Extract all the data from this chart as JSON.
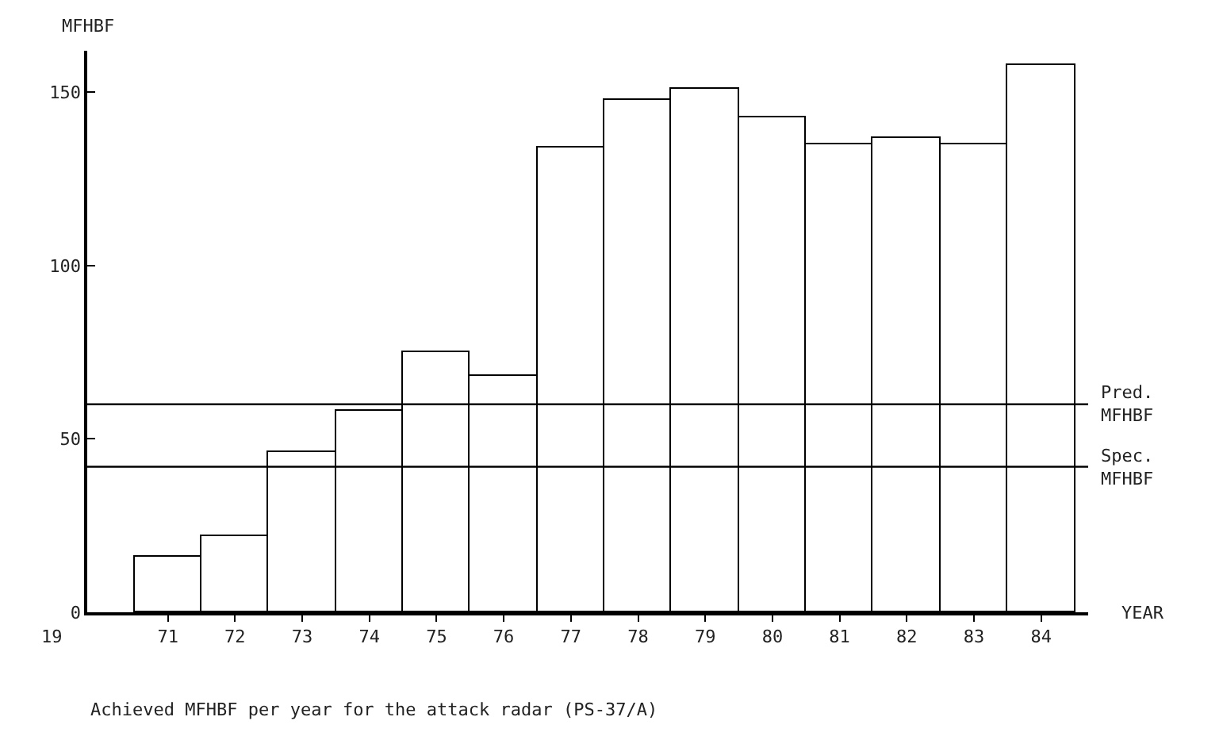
{
  "chart_data": {
    "type": "bar",
    "xlabel": "YEAR",
    "ylabel": "MFHBF",
    "categories": [
      "71",
      "72",
      "73",
      "74",
      "75",
      "76",
      "77",
      "78",
      "79",
      "80",
      "81",
      "82",
      "83",
      "84"
    ],
    "values": [
      16,
      22,
      46,
      58,
      75,
      68,
      134,
      148,
      151,
      143,
      135,
      137,
      135,
      158
    ],
    "color": "#ffffff",
    "ylim": [
      0,
      162
    ],
    "yticks": [
      0,
      50,
      100,
      150
    ],
    "grid": false,
    "ref_lines": [
      {
        "axis": "y",
        "value": 60,
        "label": "Pred. MFHBF",
        "color": "#000000"
      },
      {
        "axis": "y",
        "value": 42,
        "label": "Spec. MFHBF",
        "color": "#000000"
      }
    ],
    "annotations": [
      "19",
      "Achieved MFHBF per year for the attack radar (PS-37/A)"
    ]
  }
}
